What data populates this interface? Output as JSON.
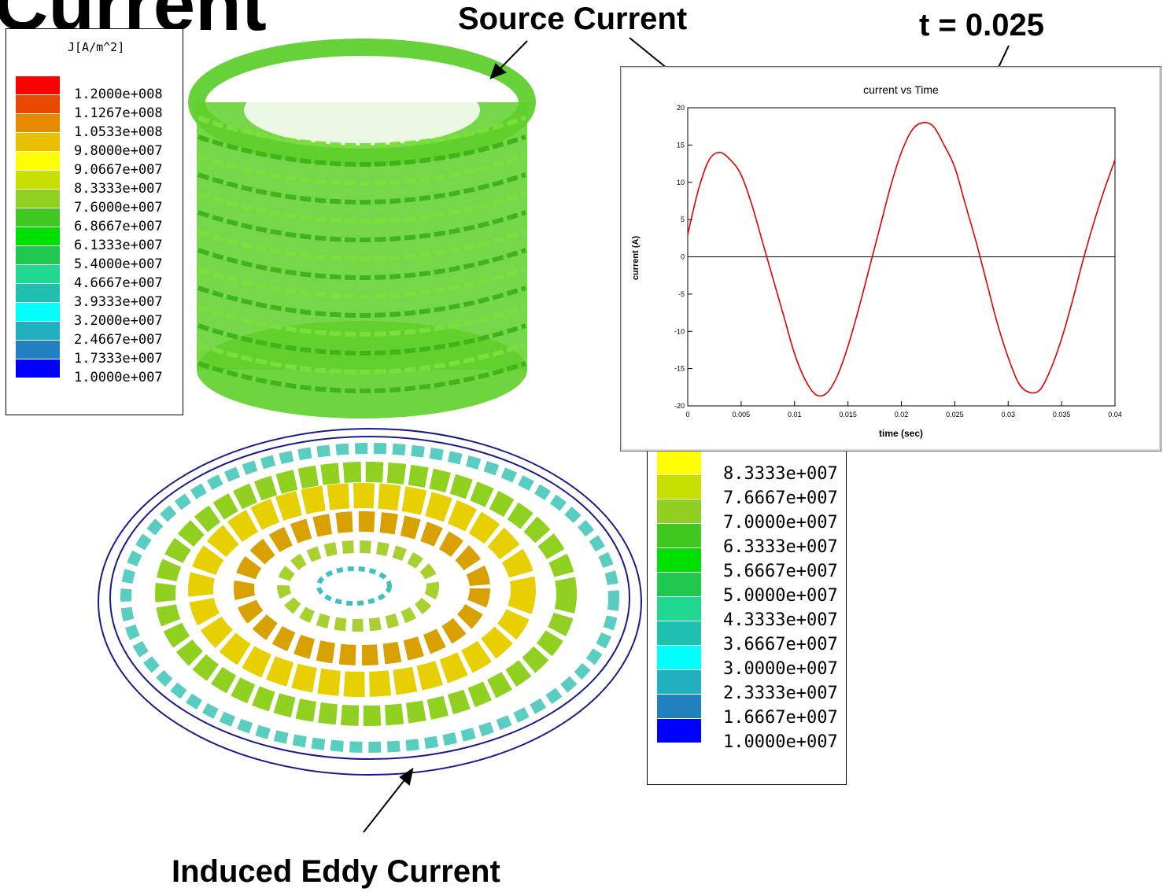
{
  "title": "Current",
  "annotations": {
    "source": "Source Current",
    "time": "t = 0.025",
    "eddy": "Induced Eddy Current"
  },
  "legend_top": {
    "title": "J[A/m^2]",
    "entries": [
      {
        "value": "1.2000e+008",
        "color": "#ff0000"
      },
      {
        "value": "1.1267e+008",
        "color": "#e84a00"
      },
      {
        "value": "1.0533e+008",
        "color": "#e88a00"
      },
      {
        "value": "9.8000e+007",
        "color": "#e8c000"
      },
      {
        "value": "9.0667e+007",
        "color": "#ffff00"
      },
      {
        "value": "8.3333e+007",
        "color": "#c8e000"
      },
      {
        "value": "7.6000e+007",
        "color": "#90d020"
      },
      {
        "value": "6.8667e+007",
        "color": "#40c820"
      },
      {
        "value": "6.1333e+007",
        "color": "#00e000"
      },
      {
        "value": "5.4000e+007",
        "color": "#20c850"
      },
      {
        "value": "4.6667e+007",
        "color": "#20d890"
      },
      {
        "value": "3.9333e+007",
        "color": "#20c0b0"
      },
      {
        "value": "3.2000e+007",
        "color": "#00ffff"
      },
      {
        "value": "2.4667e+007",
        "color": "#20b0c0"
      },
      {
        "value": "1.7333e+007",
        "color": "#2080c0"
      },
      {
        "value": "1.0000e+007",
        "color": "#0000ff"
      }
    ]
  },
  "legend_bottom": {
    "entries": [
      {
        "value": "8.3333e+007",
        "color": "#ffff00"
      },
      {
        "value": "7.6667e+007",
        "color": "#c8e000"
      },
      {
        "value": "7.0000e+007",
        "color": "#90d020"
      },
      {
        "value": "6.3333e+007",
        "color": "#40c820"
      },
      {
        "value": "5.6667e+007",
        "color": "#00e000"
      },
      {
        "value": "5.0000e+007",
        "color": "#20c850"
      },
      {
        "value": "4.3333e+007",
        "color": "#20d890"
      },
      {
        "value": "3.6667e+007",
        "color": "#20c0b0"
      },
      {
        "value": "3.0000e+007",
        "color": "#00ffff"
      },
      {
        "value": "2.3333e+007",
        "color": "#20b0c0"
      },
      {
        "value": "1.6667e+007",
        "color": "#2080c0"
      },
      {
        "value": "1.0000e+007",
        "color": "#0000ff"
      }
    ]
  },
  "chart_data": {
    "type": "line",
    "title": "current vs Time",
    "xlabel": "time (sec)",
    "ylabel": "current (A)",
    "xlim": [
      0,
      0.04
    ],
    "ylim": [
      -20,
      20
    ],
    "xticks": [
      "0",
      "0.005",
      "0.01",
      "0.015",
      "0.02",
      "0.025",
      "0.03",
      "0.035",
      "0.04"
    ],
    "yticks": [
      "20",
      "15",
      "10",
      "5",
      "0",
      "-5",
      "-10",
      "-15",
      "-20"
    ],
    "series": [
      {
        "color": "#e00000",
        "x": [
          0,
          0.001,
          0.002,
          0.003,
          0.004,
          0.005,
          0.006,
          0.007,
          0.008,
          0.009,
          0.01,
          0.011,
          0.012,
          0.013,
          0.014,
          0.015,
          0.016,
          0.017,
          0.018,
          0.019,
          0.02,
          0.021,
          0.022,
          0.023,
          0.024,
          0.025,
          0.026,
          0.027,
          0.028,
          0.029,
          0.03,
          0.031,
          0.032,
          0.033,
          0.034,
          0.035,
          0.036,
          0.037,
          0.038,
          0.039,
          0.04
        ],
        "y": [
          3,
          9,
          13,
          14,
          13,
          11,
          7,
          2,
          -3,
          -8,
          -13,
          -16.5,
          -18.5,
          -18.3,
          -16,
          -12,
          -7,
          -1.5,
          4,
          9.5,
          14,
          17,
          18,
          17.5,
          15,
          12,
          7,
          2,
          -3.5,
          -9,
          -13.5,
          -17,
          -18.2,
          -17.8,
          -15,
          -11,
          -6,
          -0.5,
          4.5,
          9,
          13
        ]
      }
    ]
  }
}
